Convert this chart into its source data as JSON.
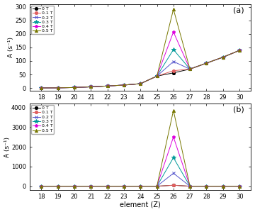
{
  "elements": [
    18,
    19,
    20,
    21,
    22,
    23,
    24,
    25,
    26,
    27,
    28,
    29,
    30
  ],
  "panel_a": {
    "ylabel": "A (s⁻¹)",
    "ylim": [
      -10,
      310
    ],
    "yticks": [
      0,
      50,
      100,
      150,
      200,
      250,
      300
    ],
    "series": {
      "0 T": [
        0.3,
        0.8,
        2.0,
        4.5,
        7.5,
        11.0,
        16.0,
        44.0,
        56.0,
        70.0,
        92.0,
        114.0,
        139.0
      ],
      "0.1 T": [
        0.3,
        0.8,
        2.0,
        4.5,
        7.5,
        11.0,
        16.0,
        44.0,
        64.0,
        70.0,
        92.0,
        114.0,
        139.0
      ],
      "0.2 T": [
        0.3,
        0.8,
        2.0,
        4.5,
        7.5,
        11.0,
        16.0,
        44.0,
        98.0,
        70.0,
        92.0,
        114.0,
        139.0
      ],
      "0.3 T": [
        0.3,
        0.8,
        2.0,
        4.5,
        7.5,
        11.0,
        16.0,
        44.0,
        142.0,
        70.0,
        92.0,
        114.0,
        139.0
      ],
      "0.4 T": [
        0.3,
        0.8,
        2.0,
        4.5,
        7.5,
        11.0,
        16.0,
        44.0,
        207.0,
        70.0,
        92.0,
        114.0,
        139.0
      ],
      "0.5 T": [
        0.3,
        0.8,
        2.0,
        4.5,
        7.5,
        11.0,
        16.0,
        44.0,
        291.0,
        70.0,
        92.0,
        114.0,
        139.0
      ]
    }
  },
  "panel_b": {
    "ylabel": "A (s⁻¹)",
    "ylim": [
      -200,
      4200
    ],
    "yticks": [
      0,
      1000,
      2000,
      3000,
      4000
    ],
    "series": {
      "0 T": [
        0.0,
        0.0,
        0.0,
        0.0,
        0.0,
        0.0,
        0.0,
        0.0,
        50.0,
        0.0,
        0.0,
        0.0,
        0.0
      ],
      "0.1 T": [
        0.0,
        0.0,
        0.0,
        0.0,
        0.0,
        0.0,
        0.0,
        0.0,
        50.0,
        0.0,
        0.0,
        0.0,
        0.0
      ],
      "0.2 T": [
        0.0,
        0.0,
        0.0,
        0.0,
        0.0,
        0.0,
        0.0,
        0.0,
        660.0,
        0.0,
        0.0,
        0.0,
        0.0
      ],
      "0.3 T": [
        0.0,
        0.0,
        0.0,
        0.0,
        0.0,
        0.0,
        0.0,
        0.0,
        1450.0,
        0.0,
        0.0,
        0.0,
        0.0
      ],
      "0.4 T": [
        0.0,
        0.0,
        0.0,
        0.0,
        0.0,
        0.0,
        0.0,
        0.0,
        2500.0,
        0.0,
        0.0,
        0.0,
        0.0
      ],
      "0.5 T": [
        0.0,
        0.0,
        0.0,
        0.0,
        0.0,
        0.0,
        0.0,
        0.0,
        3850.0,
        0.0,
        0.0,
        0.0,
        0.0
      ]
    }
  },
  "colors": {
    "0 T": "#000000",
    "0.1 T": "#e06060",
    "0.2 T": "#5555cc",
    "0.3 T": "#009999",
    "0.4 T": "#dd00dd",
    "0.5 T": "#777700"
  },
  "markers": {
    "0 T": "o",
    "0.1 T": "o",
    "0.2 T": "x",
    "0.3 T": "*",
    "0.4 T": "p",
    "0.5 T": "^"
  },
  "markersizes": {
    "0 T": 3,
    "0.1 T": 3,
    "0.2 T": 3,
    "0.3 T": 4,
    "0.4 T": 3,
    "0.5 T": 3
  },
  "xlabel": "element (Z)",
  "xticks": [
    18,
    19,
    20,
    21,
    22,
    23,
    24,
    25,
    26,
    27,
    28,
    29,
    30
  ],
  "legend_labels": [
    "0 T",
    "0.1 T",
    "0.2 T",
    "0.3 T",
    "0.4 T",
    "0.5 T"
  ]
}
